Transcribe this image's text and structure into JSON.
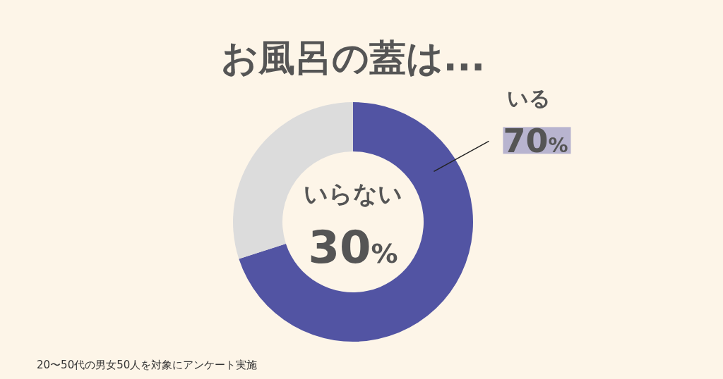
{
  "chart_data": {
    "type": "donut",
    "title": "お風呂の蓋は...",
    "categories": [
      "いる",
      "いらない"
    ],
    "values": [
      70,
      30
    ],
    "colors": [
      "#5254a3",
      "#dcdcdc"
    ],
    "value_labels": [
      "70%",
      "30%"
    ],
    "annotations": [
      "20〜50代の男女50人を対象にアンケート実施"
    ]
  }
}
